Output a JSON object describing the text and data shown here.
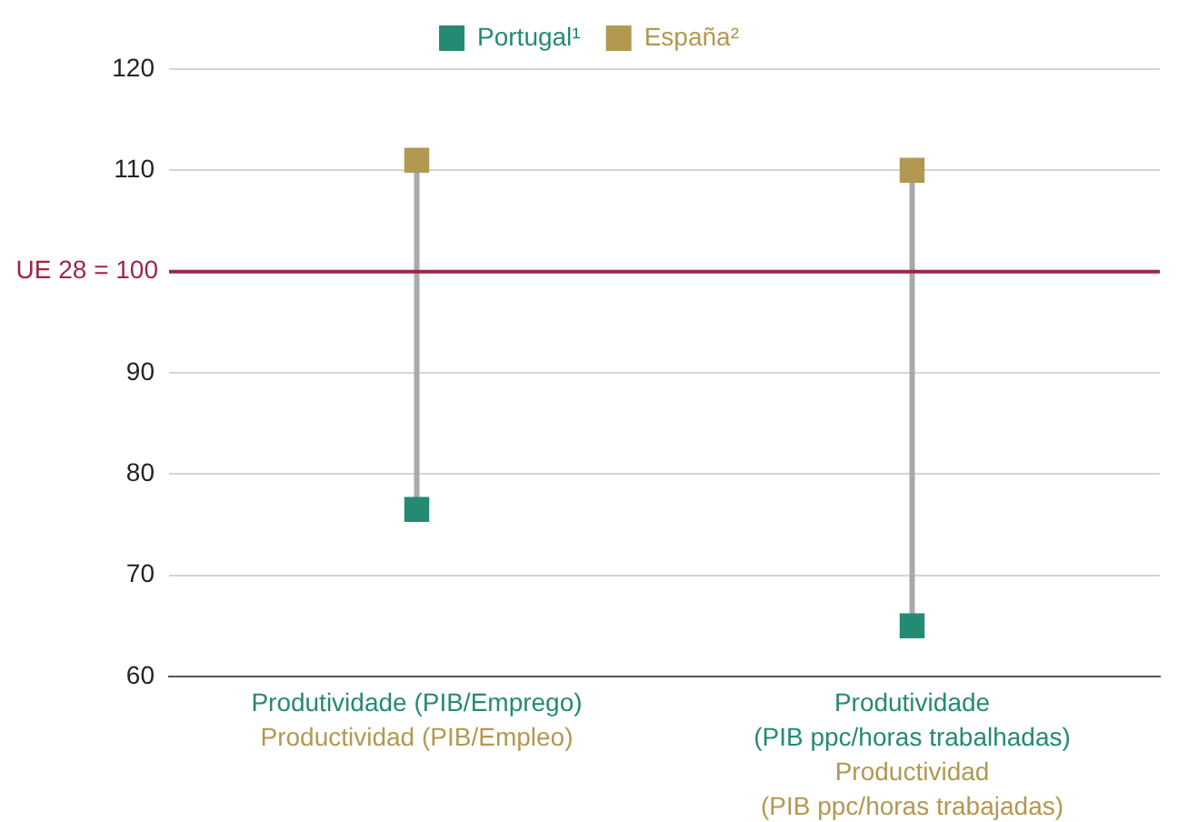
{
  "chart_data": {
    "type": "scatter",
    "categories": [
      "Produtividade (PIB/Emprego)\nProductividad (PIB/Empleo)",
      "Produtividade\n(PIB ppc/horas trabalhadas)\nProductividad\n(PIB ppc/horas trabajadas)"
    ],
    "series": [
      {
        "name": "Portugal¹",
        "color": "#258a73",
        "values": [
          76.5,
          65
        ]
      },
      {
        "name": "España²",
        "color": "#b39852",
        "values": [
          111,
          110
        ]
      }
    ],
    "ylim": [
      60,
      120
    ],
    "yticks": [
      60,
      70,
      80,
      90,
      {
        "value": 100,
        "label": null
      },
      110,
      120
    ],
    "ref_lines": [
      {
        "axis": "y",
        "value": 100,
        "label": "UE 28 = 100",
        "color": "#9b2743"
      }
    ],
    "grid": "y",
    "legend": "top",
    "marker": "square"
  }
}
